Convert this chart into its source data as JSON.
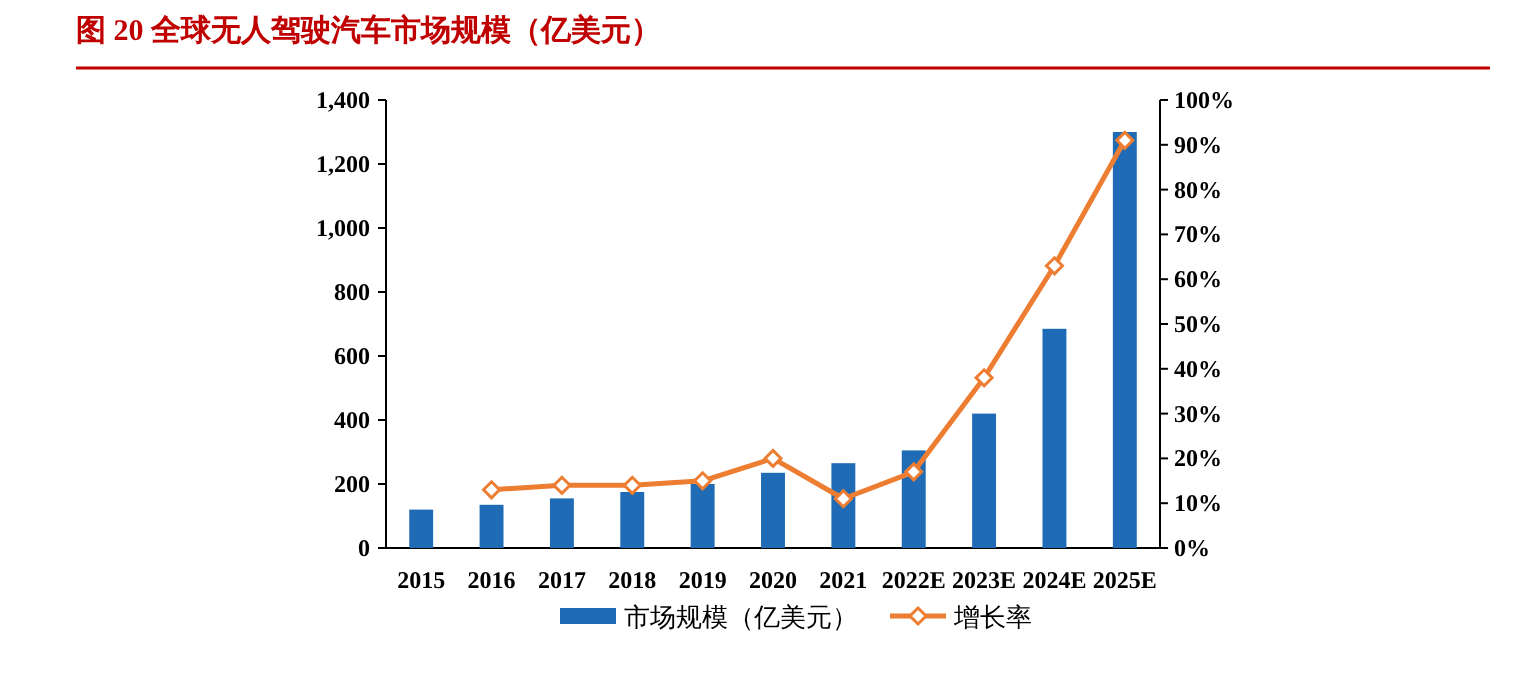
{
  "chart_data": {
    "type": "bar",
    "title": "图 20 全球无人驾驶汽车市场规模（亿美元）",
    "categories": [
      "2015",
      "2016",
      "2017",
      "2018",
      "2019",
      "2020",
      "2021",
      "2022E",
      "2023E",
      "2024E",
      "2025E"
    ],
    "series": [
      {
        "name": "市场规模（亿美元）",
        "color": "#1f6bb5",
        "values": [
          120,
          135,
          155,
          175,
          200,
          235,
          265,
          305,
          420,
          685,
          1300
        ]
      },
      {
        "name": "增长率",
        "type": "line",
        "axis": "y2",
        "color": "#ed7d31",
        "marker": "diamond",
        "values": [
          null,
          13,
          14,
          14,
          15,
          20,
          11,
          17,
          38,
          63,
          91
        ]
      }
    ],
    "ylim": [
      0,
      1400
    ],
    "yticks": [
      {
        "value": 0,
        "label": "0"
      },
      {
        "value": 200,
        "label": "200"
      },
      {
        "value": 400,
        "label": "400"
      },
      {
        "value": 600,
        "label": "600"
      },
      {
        "value": 800,
        "label": "800"
      },
      {
        "value": 1000,
        "label": "1,000"
      },
      {
        "value": 1200,
        "label": "1,200"
      },
      {
        "value": 1400,
        "label": "1,400"
      }
    ],
    "y2lim": [
      0,
      100
    ],
    "y2ticks": [
      {
        "value": 0,
        "label": "0%"
      },
      {
        "value": 10,
        "label": "10%"
      },
      {
        "value": 20,
        "label": "20%"
      },
      {
        "value": 30,
        "label": "30%"
      },
      {
        "value": 40,
        "label": "40%"
      },
      {
        "value": 50,
        "label": "50%"
      },
      {
        "value": 60,
        "label": "60%"
      },
      {
        "value": 70,
        "label": "70%"
      },
      {
        "value": 80,
        "label": "80%"
      },
      {
        "value": 90,
        "label": "90%"
      },
      {
        "value": 100,
        "label": "100%"
      }
    ],
    "grid": false,
    "legend": "bottom"
  }
}
